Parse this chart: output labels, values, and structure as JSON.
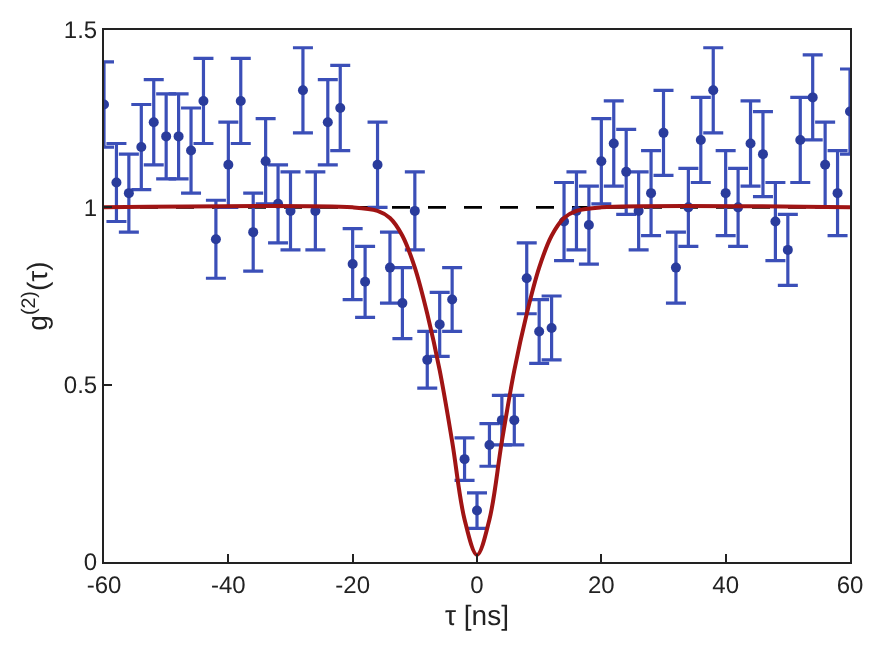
{
  "chart_data": {
    "type": "scatter",
    "xlabel": "τ [ns]",
    "ylabel": "g$^{(2)}$(τ)",
    "xlim": [
      -60,
      60
    ],
    "ylim": [
      0,
      1.5
    ],
    "xticks": [
      -60,
      -40,
      -20,
      0,
      20,
      40,
      60
    ],
    "yticks": [
      0,
      0.5,
      1,
      1.5
    ],
    "marker": "circle",
    "ref_lines": [
      {
        "axis": "y",
        "value": 1,
        "color": "#000000",
        "line_style": "dashed"
      }
    ],
    "series": [
      {
        "color": "#2a3c9c",
        "x": [
          -60,
          -58,
          -56,
          -54,
          -52,
          -50,
          -48,
          -46,
          -44,
          -42,
          -40,
          -38,
          -36,
          -34,
          -32,
          -30,
          -28,
          -26,
          -24,
          -22,
          -20,
          -18,
          -16,
          -14,
          -12,
          -10,
          -8,
          -6,
          -4,
          -2,
          0,
          2,
          4,
          6,
          8,
          10,
          12,
          14,
          16,
          18,
          20,
          22,
          24,
          26,
          28,
          30,
          32,
          34,
          36,
          38,
          40,
          42,
          44,
          46,
          48,
          50,
          52,
          54,
          56,
          58,
          60
        ],
        "values": [
          1.29,
          1.07,
          1.04,
          1.17,
          1.24,
          1.2,
          1.2,
          1.16,
          1.3,
          0.91,
          1.12,
          1.3,
          0.93,
          1.13,
          1.01,
          0.99,
          1.33,
          0.99,
          1.24,
          1.28,
          0.84,
          0.79,
          1.12,
          0.83,
          0.73,
          0.99,
          0.57,
          0.67,
          0.74,
          0.29,
          0.145,
          0.33,
          0.4,
          0.4,
          0.8,
          0.65,
          0.66,
          0.96,
          0.99,
          0.95,
          1.13,
          1.18,
          1.1,
          0.99,
          1.04,
          1.21,
          0.83,
          1.0,
          1.19,
          1.33,
          1.04,
          1.0,
          1.18,
          1.15,
          0.96,
          0.88,
          1.19,
          1.31,
          1.12,
          1.04,
          1.27
        ],
        "errors": [
          0.12,
          0.11,
          0.11,
          0.12,
          0.12,
          0.12,
          0.12,
          0.12,
          0.12,
          0.11,
          0.12,
          0.12,
          0.11,
          0.12,
          0.11,
          0.11,
          0.12,
          0.11,
          0.12,
          0.12,
          0.1,
          0.1,
          0.12,
          0.1,
          0.1,
          0.11,
          0.08,
          0.09,
          0.09,
          0.06,
          0.05,
          0.06,
          0.07,
          0.07,
          0.1,
          0.09,
          0.09,
          0.11,
          0.11,
          0.11,
          0.12,
          0.12,
          0.12,
          0.11,
          0.12,
          0.12,
          0.1,
          0.11,
          0.12,
          0.12,
          0.12,
          0.11,
          0.12,
          0.12,
          0.11,
          0.1,
          0.12,
          0.12,
          0.12,
          0.12,
          0.12
        ]
      },
      {
        "type": "line",
        "color": "#a01414",
        "marker": "none",
        "x": [
          -60,
          -20,
          -16,
          -14,
          -12,
          -10,
          -8,
          -6,
          -4,
          -2,
          0,
          2,
          4,
          6,
          8,
          10,
          12,
          14,
          16,
          20,
          60
        ],
        "values": [
          1,
          1,
          0.99,
          0.97,
          0.92,
          0.83,
          0.7,
          0.54,
          0.34,
          0.12,
          0.02,
          0.12,
          0.34,
          0.54,
          0.7,
          0.83,
          0.92,
          0.97,
          0.99,
          1,
          1
        ]
      }
    ]
  }
}
